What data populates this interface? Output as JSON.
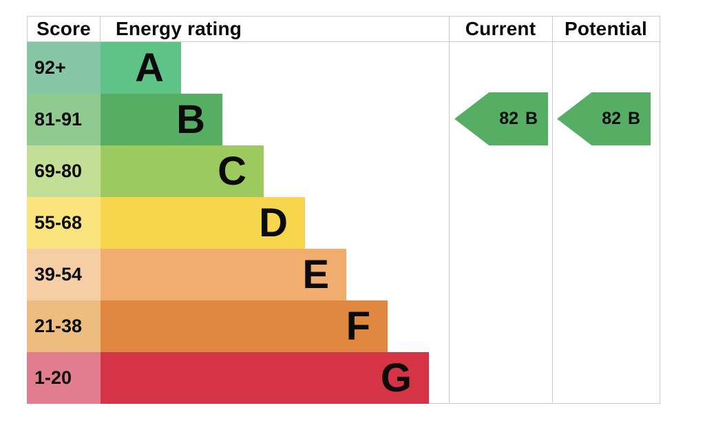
{
  "title": "Energy rating chart",
  "colors": {
    "background": "#ffffff",
    "border": "#cbcbcb",
    "text": "#0b0b0b",
    "arrow": "#56ae65"
  },
  "header": {
    "score": "Score",
    "energy_rating": "Energy rating",
    "current": "Current",
    "potential": "Potential"
  },
  "bands": [
    {
      "score": "92+",
      "letter": "A",
      "bar_color": "#5fc287",
      "score_color": "#86c6a6"
    },
    {
      "score": "81-91",
      "letter": "B",
      "bar_color": "#56ae65",
      "score_color": "#8fca8e"
    },
    {
      "score": "69-80",
      "letter": "C",
      "bar_color": "#9cca5e",
      "score_color": "#c3de95"
    },
    {
      "score": "55-68",
      "letter": "D",
      "bar_color": "#f7d64d",
      "score_color": "#fae47e"
    },
    {
      "score": "39-54",
      "letter": "E",
      "bar_color": "#f1ad6e",
      "score_color": "#f6cea5"
    },
    {
      "score": "21-38",
      "letter": "F",
      "bar_color": "#e0883f",
      "score_color": "#edbd7f"
    },
    {
      "score": "1-20",
      "letter": "G",
      "bar_color": "#d53447",
      "score_color": "#e27d90"
    }
  ],
  "current": {
    "score": "82",
    "band": "B",
    "color": "#56ae65"
  },
  "potential": {
    "score": "82",
    "band": "B",
    "color": "#56ae65"
  },
  "chart_data": {
    "type": "bar",
    "title": "EPC energy efficiency rating chart",
    "columns": [
      "Score",
      "Energy rating",
      "Current",
      "Potential"
    ],
    "categories": [
      "A",
      "B",
      "C",
      "D",
      "E",
      "F",
      "G"
    ],
    "score_ranges": [
      "92+",
      "81-91",
      "69-80",
      "55-68",
      "39-54",
      "21-38",
      "1-20"
    ],
    "band_colors": [
      "#5fc287",
      "#56ae65",
      "#9cca5e",
      "#f7d64d",
      "#f1ad6e",
      "#e0883f",
      "#d53447"
    ],
    "bar_relative_lengths": [
      1,
      2,
      3,
      4,
      5,
      6,
      7
    ],
    "current": {
      "score": 82,
      "band": "B"
    },
    "potential": {
      "score": 82,
      "band": "B"
    },
    "legend_position": "none",
    "grid": false
  }
}
